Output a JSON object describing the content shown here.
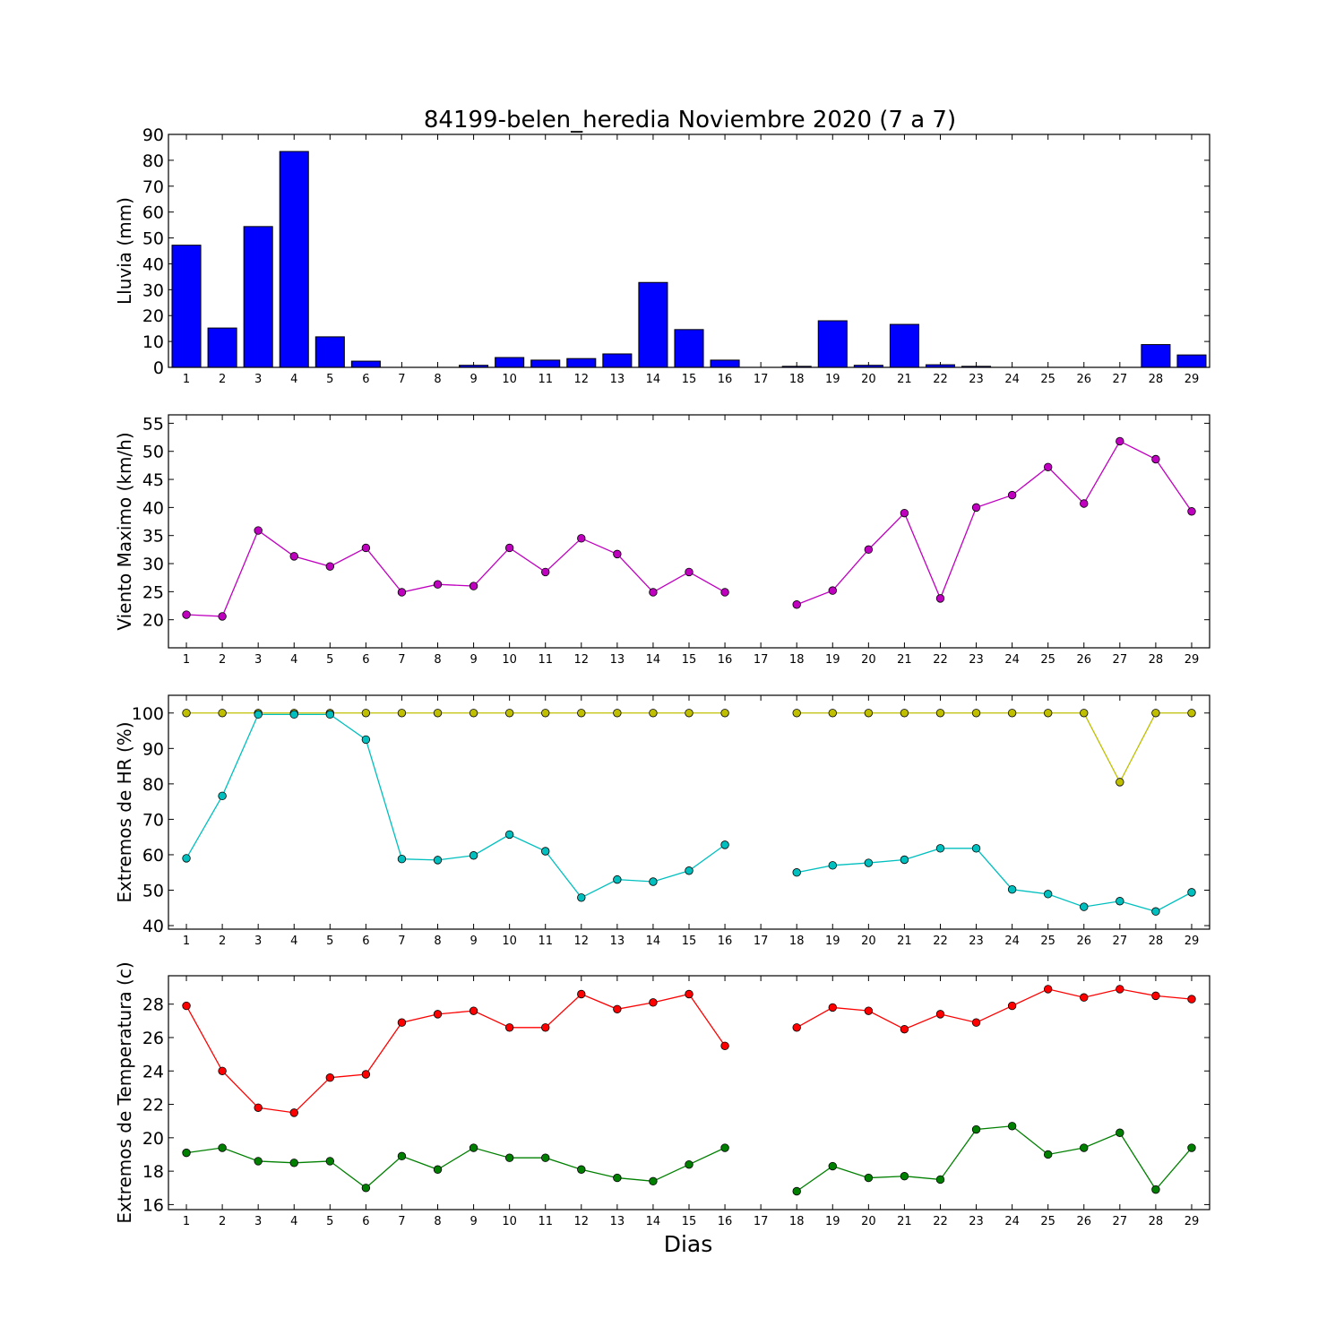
{
  "title": "84199-belen_heredia Noviembre 2020  (7 a 7)",
  "xlabel": "Dias",
  "chart_data": [
    {
      "type": "bar",
      "ylabel": "Lluvia (mm)",
      "ylim": [
        0,
        90
      ],
      "yticks": [
        0,
        10,
        20,
        30,
        40,
        50,
        60,
        70,
        80,
        90
      ],
      "xlim": [
        0.5,
        29.5
      ],
      "x": [
        1,
        2,
        3,
        4,
        5,
        6,
        7,
        8,
        9,
        10,
        11,
        12,
        13,
        14,
        15,
        16,
        17,
        18,
        19,
        20,
        21,
        22,
        23,
        24,
        25,
        26,
        27,
        28,
        29
      ],
      "values": [
        47.2,
        15.2,
        54.4,
        83.4,
        11.8,
        2.4,
        0,
        0,
        0.8,
        3.8,
        2.8,
        3.4,
        5.2,
        32.8,
        14.6,
        2.8,
        0,
        0.4,
        18.0,
        0.8,
        16.6,
        1.0,
        0.4,
        0,
        0,
        0,
        0,
        8.8,
        4.8
      ],
      "color": "#0000ff"
    },
    {
      "type": "line",
      "ylabel": "Viento Maximo (km/h)",
      "ylim": [
        15,
        56.5
      ],
      "yticks": [
        20,
        25,
        30,
        35,
        40,
        45,
        50,
        55
      ],
      "xlim": [
        0.5,
        29.5
      ],
      "x": [
        1,
        2,
        3,
        4,
        5,
        6,
        7,
        8,
        9,
        10,
        11,
        12,
        13,
        14,
        15,
        16,
        17,
        18,
        19,
        20,
        21,
        22,
        23,
        24,
        25,
        26,
        27,
        28,
        29
      ],
      "series": [
        {
          "color": "#bf00bf",
          "values": [
            20.9,
            20.6,
            35.9,
            31.3,
            29.5,
            32.8,
            24.9,
            26.3,
            26.0,
            32.8,
            28.5,
            34.5,
            31.7,
            24.9,
            28.5,
            24.9,
            null,
            22.7,
            25.2,
            32.5,
            39.0,
            23.8,
            40.0,
            42.2,
            47.2,
            40.7,
            51.8,
            48.6,
            39.3
          ]
        }
      ]
    },
    {
      "type": "line",
      "ylabel": "Extremos de HR (%)",
      "ylim": [
        39,
        105
      ],
      "yticks": [
        40,
        50,
        60,
        70,
        80,
        90,
        100
      ],
      "xlim": [
        0.5,
        29.5
      ],
      "x": [
        1,
        2,
        3,
        4,
        5,
        6,
        7,
        8,
        9,
        10,
        11,
        12,
        13,
        14,
        15,
        16,
        17,
        18,
        19,
        20,
        21,
        22,
        23,
        24,
        25,
        26,
        27,
        28,
        29
      ],
      "series": [
        {
          "color": "#bfbf00",
          "values": [
            100,
            100,
            100,
            100,
            100,
            100,
            100,
            100,
            100,
            100,
            100,
            100,
            100,
            100,
            100,
            100,
            null,
            100,
            100,
            100,
            100,
            100,
            100,
            100,
            100,
            100,
            80.5,
            100,
            100
          ]
        },
        {
          "color": "#00bfbf",
          "values": [
            59,
            76.6,
            99.6,
            99.6,
            99.6,
            92.5,
            58.8,
            58.5,
            59.8,
            65.7,
            61,
            47.9,
            53.0,
            52.4,
            55.5,
            62.8,
            null,
            55,
            57,
            57.7,
            58.6,
            61.8,
            61.8,
            50.2,
            48.9,
            45.3,
            46.9,
            44,
            49.4
          ]
        }
      ]
    },
    {
      "type": "line",
      "ylabel": "Extremos de Temperatura (c)",
      "ylim": [
        15.7,
        29.7
      ],
      "yticks": [
        16,
        18,
        20,
        22,
        24,
        26,
        28
      ],
      "xlim": [
        0.5,
        29.5
      ],
      "x": [
        1,
        2,
        3,
        4,
        5,
        6,
        7,
        8,
        9,
        10,
        11,
        12,
        13,
        14,
        15,
        16,
        17,
        18,
        19,
        20,
        21,
        22,
        23,
        24,
        25,
        26,
        27,
        28,
        29
      ],
      "series": [
        {
          "color": "#ff0000",
          "values": [
            27.9,
            24.0,
            21.8,
            21.5,
            23.6,
            23.8,
            26.9,
            27.4,
            27.6,
            26.6,
            26.6,
            28.6,
            27.7,
            28.1,
            28.6,
            25.5,
            null,
            26.6,
            27.8,
            27.6,
            26.5,
            27.4,
            26.9,
            27.9,
            28.9,
            28.4,
            28.9,
            28.5,
            28.3
          ]
        },
        {
          "color": "#008000",
          "values": [
            19.1,
            19.4,
            18.6,
            18.5,
            18.6,
            17.0,
            18.9,
            18.1,
            19.4,
            18.8,
            18.8,
            18.1,
            17.6,
            17.4,
            18.4,
            19.4,
            null,
            16.8,
            18.3,
            17.6,
            17.7,
            17.5,
            20.5,
            20.7,
            19.0,
            19.4,
            20.3,
            16.9,
            19.4
          ]
        }
      ]
    }
  ]
}
